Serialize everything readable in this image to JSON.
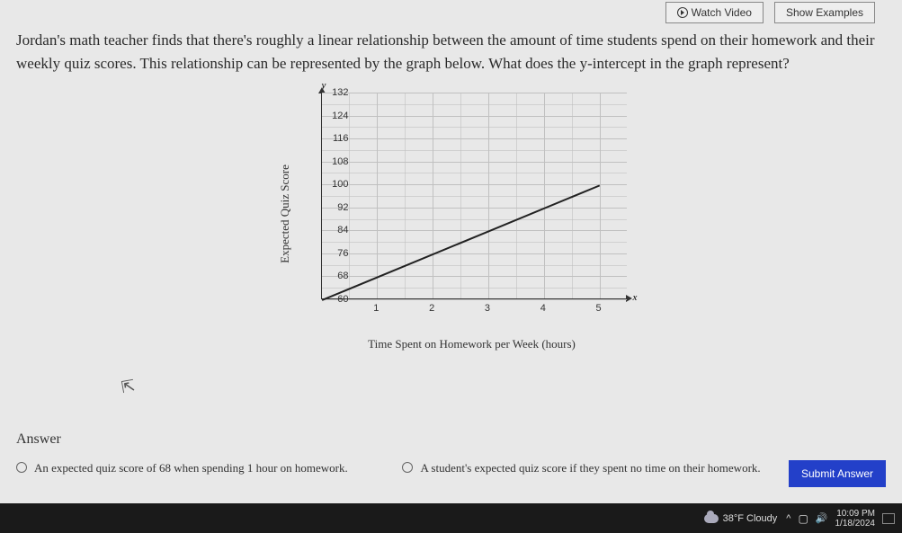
{
  "top_buttons": {
    "watch_video": "Watch Video",
    "show_examples": "Show Examples"
  },
  "question": "Jordan's math teacher finds that there's roughly a linear relationship between the amount of time students spend on their homework and their weekly quiz scores. This relationship can be represented by the graph below. What does the y-intercept in the graph represent?",
  "chart": {
    "type": "line",
    "y_axis_label": "Expected Quiz Score",
    "x_axis_label": "Time Spent on Homework per Week (hours)",
    "y_letter": "y",
    "x_letter": "x",
    "y_ticks": [
      60,
      68,
      76,
      84,
      92,
      100,
      108,
      116,
      124,
      132
    ],
    "x_ticks": [
      1,
      2,
      3,
      4,
      5
    ],
    "ylim": [
      60,
      132
    ],
    "xlim": [
      0,
      5.5
    ],
    "line_start": {
      "x": 0,
      "y": 60
    },
    "line_end": {
      "x": 5,
      "y": 100
    },
    "grid_color": "#c0c0c0",
    "axis_color": "#333333",
    "line_color": "#222222",
    "background_color": "#e8e8e8",
    "tick_fontsize": 11,
    "label_fontsize": 13
  },
  "answer": {
    "heading": "Answer",
    "option1": "An expected quiz score of 68 when spending 1 hour on homework.",
    "option2": "A student's expected quiz score if they spent no time on their homework.",
    "submit": "Submit Answer"
  },
  "taskbar": {
    "weather": "38°F  Cloudy",
    "caret": "^",
    "chat_icon": "💬",
    "sound_icon": "🔊",
    "time": "10:09 PM",
    "date": "1/18/2024"
  }
}
